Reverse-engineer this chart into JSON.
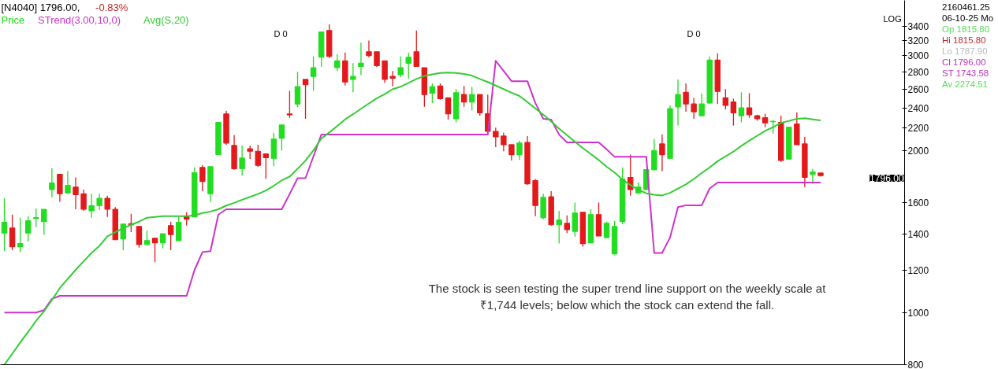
{
  "chart_data": {
    "type": "candlestick",
    "title": "[N4040] 1796.00,",
    "subtitle": "-0.83%",
    "categories": [
      null,
      null,
      null,
      null,
      null,
      null,
      null,
      null,
      null,
      null,
      null,
      null,
      null,
      null,
      null,
      null,
      null,
      null,
      null,
      null,
      null,
      null,
      null,
      null,
      null,
      null,
      null,
      null,
      null,
      null,
      null,
      null,
      null,
      null,
      null,
      null,
      null,
      null,
      null,
      null,
      null,
      null,
      null,
      null,
      null,
      null,
      null,
      null,
      null,
      null,
      null,
      null,
      null,
      null,
      null,
      null,
      null,
      null,
      null,
      null,
      null,
      null,
      null,
      null,
      null,
      null,
      null,
      null,
      null,
      null,
      null,
      null,
      null,
      null,
      null,
      null,
      null,
      null,
      null,
      null,
      null,
      null,
      null,
      null,
      null,
      null,
      null,
      null,
      null,
      null,
      null,
      null,
      null,
      null,
      null,
      null,
      null,
      null,
      null,
      null,
      null,
      null,
      null,
      null
    ],
    "log": "y",
    "ylim": [
      800,
      3800
    ],
    "yticks": [
      800,
      1000,
      1200,
      1400,
      1600,
      2000,
      2200,
      2400,
      2600,
      2800,
      3000,
      3200,
      3400
    ],
    "tick_labels": "y",
    "grid": false,
    "legend": "top left",
    "series": [
      {
        "name": "Price",
        "color": "#22dd22",
        "ohlc": [
          [
            1405,
            1630,
            1300,
            1470
          ],
          [
            1435,
            1520,
            1305,
            1325
          ],
          [
            1325,
            1500,
            1295,
            1343
          ],
          [
            1405,
            1510,
            1355,
            1480
          ],
          [
            1495,
            1560,
            1440,
            1500
          ],
          [
            1475,
            1555,
            1395,
            1555
          ],
          [
            1692,
            1854,
            1636,
            1740
          ],
          [
            1806,
            1806,
            1606,
            1662
          ],
          [
            1668,
            1830,
            1660,
            1722
          ],
          [
            1710,
            1782,
            1555,
            1656
          ],
          [
            1662,
            1692,
            1545,
            1555
          ],
          [
            1545,
            1662,
            1500,
            1580
          ],
          [
            1580,
            1662,
            1550,
            1630
          ],
          [
            1630,
            1648,
            1505,
            1555
          ],
          [
            1555,
            1570,
            1365,
            1365
          ],
          [
            1370,
            1460,
            1305,
            1460
          ],
          [
            1462,
            1525,
            1410,
            1455
          ],
          [
            1445,
            1445,
            1320,
            1338
          ],
          [
            1338,
            1420,
            1334,
            1360
          ],
          [
            1374,
            1374,
            1240,
            1347
          ],
          [
            1347,
            1400,
            1316,
            1400
          ],
          [
            1450,
            1475,
            1305,
            1396
          ],
          [
            1360,
            1505,
            1360,
            1470
          ],
          [
            1505,
            1535,
            1450,
            1490
          ],
          [
            1505,
            1860,
            1505,
            1818
          ],
          [
            1860,
            1878,
            1680,
            1752
          ],
          [
            1662,
            1866,
            1606,
            1866
          ],
          [
            1965,
            2255,
            1965,
            2255
          ],
          [
            2338,
            2370,
            2050,
            2064
          ],
          [
            2043,
            2135,
            1842,
            1850
          ],
          [
            1850,
            2043,
            1795,
            1936
          ],
          [
            2014,
            2043,
            1928,
            1993
          ],
          [
            1993,
            2050,
            1865,
            1876
          ],
          [
            1970,
            1970,
            1770,
            1940
          ],
          [
            1934,
            2157,
            1870,
            2100
          ],
          [
            2108,
            2231,
            2000,
            2231
          ],
          [
            2338,
            2580,
            2300,
            2330
          ],
          [
            2440,
            2800,
            2408,
            2627
          ],
          [
            2710,
            2710,
            2290,
            2650
          ],
          [
            2745,
            2990,
            2580,
            2850
          ],
          [
            2980,
            3320,
            2860,
            3320
          ],
          [
            3340,
            3430,
            2970,
            2990
          ],
          [
            2850,
            3020,
            2810,
            2935
          ],
          [
            2935,
            3040,
            2640,
            2680
          ],
          [
            2710,
            2905,
            2565,
            2745
          ],
          [
            2865,
            3170,
            2760,
            2905
          ],
          [
            3050,
            3200,
            2980,
            3000
          ],
          [
            3050,
            3050,
            2860,
            2875
          ],
          [
            2935,
            2935,
            2670,
            2710
          ],
          [
            2745,
            2810,
            2630,
            2725
          ],
          [
            2765,
            2990,
            2735,
            2850
          ],
          [
            2905,
            3040,
            2720,
            2980
          ],
          [
            3050,
            3340,
            2865,
            2865
          ],
          [
            2850,
            2850,
            2410,
            2540
          ],
          [
            2555,
            2665,
            2450,
            2627
          ],
          [
            2635,
            2665,
            2485,
            2495
          ],
          [
            2505,
            2505,
            2282,
            2340
          ],
          [
            2290,
            2600,
            2255,
            2560
          ],
          [
            2540,
            2635,
            2410,
            2460
          ],
          [
            2460,
            2625,
            2375,
            2540
          ],
          [
            2540,
            2540,
            2320,
            2350
          ],
          [
            2340,
            2540,
            2165,
            2170
          ],
          [
            2170,
            2205,
            2028,
            2120
          ],
          [
            2127,
            2157,
            1993,
            2050
          ],
          [
            2050,
            2050,
            1916,
            1964
          ],
          [
            1964,
            2085,
            1922,
            2064
          ],
          [
            2070,
            2127,
            1728,
            1734
          ],
          [
            1758,
            1770,
            1510,
            1580
          ],
          [
            1500,
            1662,
            1490,
            1636
          ],
          [
            1640,
            1680,
            1450,
            1455
          ],
          [
            1455,
            1545,
            1343,
            1485
          ],
          [
            1465,
            1515,
            1405,
            1425
          ],
          [
            1415,
            1600,
            1383,
            1530
          ],
          [
            1535,
            1535,
            1325,
            1343
          ],
          [
            1347,
            1555,
            1347,
            1520
          ],
          [
            1520,
            1600,
            1387,
            1387
          ],
          [
            1378,
            1475,
            1374,
            1465
          ],
          [
            1285,
            1480,
            1280,
            1445
          ],
          [
            1475,
            1860,
            1460,
            1770
          ],
          [
            1782,
            1964,
            1648,
            1692
          ],
          [
            1668,
            1745,
            1660,
            1710
          ],
          [
            1692,
            1842,
            1692,
            1842
          ],
          [
            1842,
            2100,
            1836,
            2000
          ],
          [
            2057,
            2140,
            1830,
            1964
          ],
          [
            1934,
            2425,
            1934,
            2392
          ],
          [
            2410,
            2710,
            2225,
            2540
          ],
          [
            2565,
            2665,
            2360,
            2440
          ],
          [
            2440,
            2505,
            2290,
            2360
          ],
          [
            2320,
            2550,
            2320,
            2440
          ],
          [
            2450,
            2990,
            2440,
            2945
          ],
          [
            2945,
            3030,
            2440,
            2575
          ],
          [
            2505,
            2600,
            2385,
            2425
          ],
          [
            2460,
            2495,
            2225,
            2350
          ],
          [
            2320,
            2565,
            2255,
            2400
          ],
          [
            2400,
            2555,
            2300,
            2330
          ],
          [
            2320,
            2330,
            2270,
            2290
          ],
          [
            2300,
            2340,
            2210,
            2250
          ],
          [
            2262,
            2280,
            2150,
            2265
          ],
          [
            2255,
            2320,
            1905,
            1916
          ],
          [
            1928,
            2215,
            1922,
            2210
          ],
          [
            2240,
            2355,
            2050,
            2050
          ],
          [
            2057,
            2120,
            1710,
            1782
          ],
          [
            1806,
            1848,
            1734,
            1824
          ],
          [
            1815.8,
            1815.8,
            1787.9,
            1796
          ]
        ],
        "colors": [
          "#22dd22",
          "#e31a1c",
          "#22dd22",
          "#22dd22",
          "#22dd22",
          "#22dd22",
          "#22dd22",
          "#e31a1c",
          "#22dd22",
          "#e31a1c",
          "#e31a1c",
          "#22dd22",
          "#22dd22",
          "#e31a1c",
          "#e31a1c",
          "#22dd22",
          "#e31a1c",
          "#e31a1c",
          "#22dd22",
          "#e31a1c",
          "#22dd22",
          "#e31a1c",
          "#22dd22",
          "#e31a1c",
          "#22dd22",
          "#e31a1c",
          "#22dd22",
          "#22dd22",
          "#e31a1c",
          "#e31a1c",
          "#22dd22",
          "#e31a1c",
          "#e31a1c",
          "#e31a1c",
          "#22dd22",
          "#22dd22",
          "#e31a1c",
          "#22dd22",
          "#e31a1c",
          "#22dd22",
          "#22dd22",
          "#e31a1c",
          "#22dd22",
          "#e31a1c",
          "#22dd22",
          "#22dd22",
          "#e31a1c",
          "#e31a1c",
          "#e31a1c",
          "#e31a1c",
          "#22dd22",
          "#22dd22",
          "#e31a1c",
          "#e31a1c",
          "#22dd22",
          "#e31a1c",
          "#e31a1c",
          "#22dd22",
          "#e31a1c",
          "#22dd22",
          "#e31a1c",
          "#e31a1c",
          "#e31a1c",
          "#e31a1c",
          "#e31a1c",
          "#22dd22",
          "#e31a1c",
          "#e31a1c",
          "#22dd22",
          "#e31a1c",
          "#22dd22",
          "#e31a1c",
          "#22dd22",
          "#e31a1c",
          "#22dd22",
          "#e31a1c",
          "#22dd22",
          "#22dd22",
          "#22dd22",
          "#e31a1c",
          "#22dd22",
          "#22dd22",
          "#22dd22",
          "#e31a1c",
          "#22dd22",
          "#22dd22",
          "#e31a1c",
          "#e31a1c",
          "#22dd22",
          "#22dd22",
          "#e31a1c",
          "#e31a1c",
          "#e31a1c",
          "#22dd22",
          "#e31a1c",
          "#e31a1c",
          "#e31a1c",
          "#22dd22",
          "#e31a1c",
          "#22dd22",
          "#e31a1c",
          "#e31a1c",
          "#22dd22",
          "#e31a1c"
        ]
      },
      {
        "name": "STrend(3.00,10,0)",
        "type": "line",
        "color": "#cc33cc",
        "values": [
          1000,
          1000,
          1000,
          1000,
          1000,
          1010,
          1060,
          1074,
          1074,
          1074,
          1074,
          1074,
          1074,
          1074,
          1074,
          1074,
          1074,
          1074,
          1074,
          1074,
          1074,
          1074,
          1074,
          1074,
          1200,
          1295,
          1300,
          1520,
          1555,
          1555,
          1555,
          1555,
          1555,
          1555,
          1555,
          1555,
          1660,
          1776,
          1776,
          1950,
          2140,
          2140,
          2140,
          2140,
          2140,
          2140,
          2140,
          2140,
          2140,
          2140,
          2140,
          2140,
          2140,
          2140,
          2140,
          2140,
          2140,
          2140,
          2140,
          2140,
          2140,
          2140,
          2935,
          2810,
          2690,
          2690,
          2690,
          2450,
          2290,
          2282,
          2140,
          2070,
          2070,
          2070,
          2070,
          2070,
          2010,
          1946,
          1946,
          1946,
          1946,
          1946,
          1290,
          1290,
          1378,
          1570,
          1582,
          1582,
          1582,
          1700,
          1744,
          1744,
          1744,
          1744,
          1744,
          1744,
          1744,
          1744,
          1744,
          1744,
          1744,
          1744,
          1744,
          1744
        ]
      },
      {
        "name": "Avg(S,20)",
        "type": "line",
        "color": "#33cc33",
        "values": [
          800,
          838,
          880,
          920,
          965,
          1005,
          1055,
          1110,
          1155,
          1200,
          1245,
          1290,
          1330,
          1385,
          1410,
          1435,
          1455,
          1475,
          1500,
          1505,
          1510,
          1510,
          1510,
          1510,
          1515,
          1530,
          1540,
          1555,
          1580,
          1598,
          1620,
          1640,
          1660,
          1685,
          1720,
          1760,
          1788,
          1850,
          1915,
          2000,
          2105,
          2160,
          2220,
          2285,
          2335,
          2390,
          2445,
          2500,
          2545,
          2600,
          2627,
          2670,
          2715,
          2750,
          2770,
          2785,
          2790,
          2785,
          2775,
          2755,
          2715,
          2680,
          2640,
          2600,
          2560,
          2525,
          2460,
          2395,
          2330,
          2265,
          2195,
          2135,
          2075,
          2020,
          1970,
          1920,
          1865,
          1820,
          1765,
          1725,
          1690,
          1665,
          1655,
          1650,
          1668,
          1700,
          1730,
          1770,
          1815,
          1860,
          1910,
          1950,
          1990,
          2040,
          2085,
          2130,
          2175,
          2210,
          2250,
          2270,
          2290,
          2295,
          2285,
          2275
        ]
      }
    ],
    "annotations": [
      "The stock is seen testing the super trend line support on the weekly scale at",
      "₹1,744 levels; below which the stock can extend the fall.",
      "D 0",
      "D 0",
      "LOG",
      "1796.00",
      "2160461.25",
      "06-10-25 Mo",
      "Op 1815.80",
      "Hi 1815.80",
      "Lo 1787.90",
      "Cl 1796.00",
      "ST 1743.58",
      "Av 2274.51"
    ]
  }
}
